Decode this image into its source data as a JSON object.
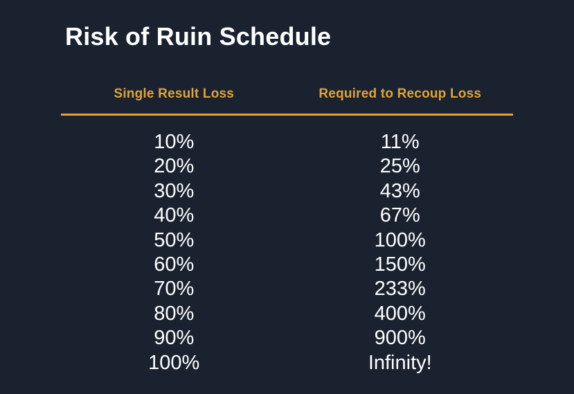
{
  "page": {
    "title": "Risk of Ruin Schedule"
  },
  "chart_data": {
    "type": "table",
    "title": "Risk of Ruin Schedule",
    "columns": [
      "Single Result Loss",
      "Required to Recoup Loss"
    ],
    "rows": [
      [
        "10%",
        "11%"
      ],
      [
        "20%",
        "25%"
      ],
      [
        "30%",
        "43%"
      ],
      [
        "40%",
        "67%"
      ],
      [
        "50%",
        "100%"
      ],
      [
        "60%",
        "150%"
      ],
      [
        "70%",
        "233%"
      ],
      [
        "80%",
        "400%"
      ],
      [
        "90%",
        "900%"
      ],
      [
        "100%",
        "Infinity!"
      ]
    ]
  },
  "colors": {
    "background": "#1A2230",
    "accent_gold": "#DFA437",
    "text": "#FFFFFF"
  }
}
